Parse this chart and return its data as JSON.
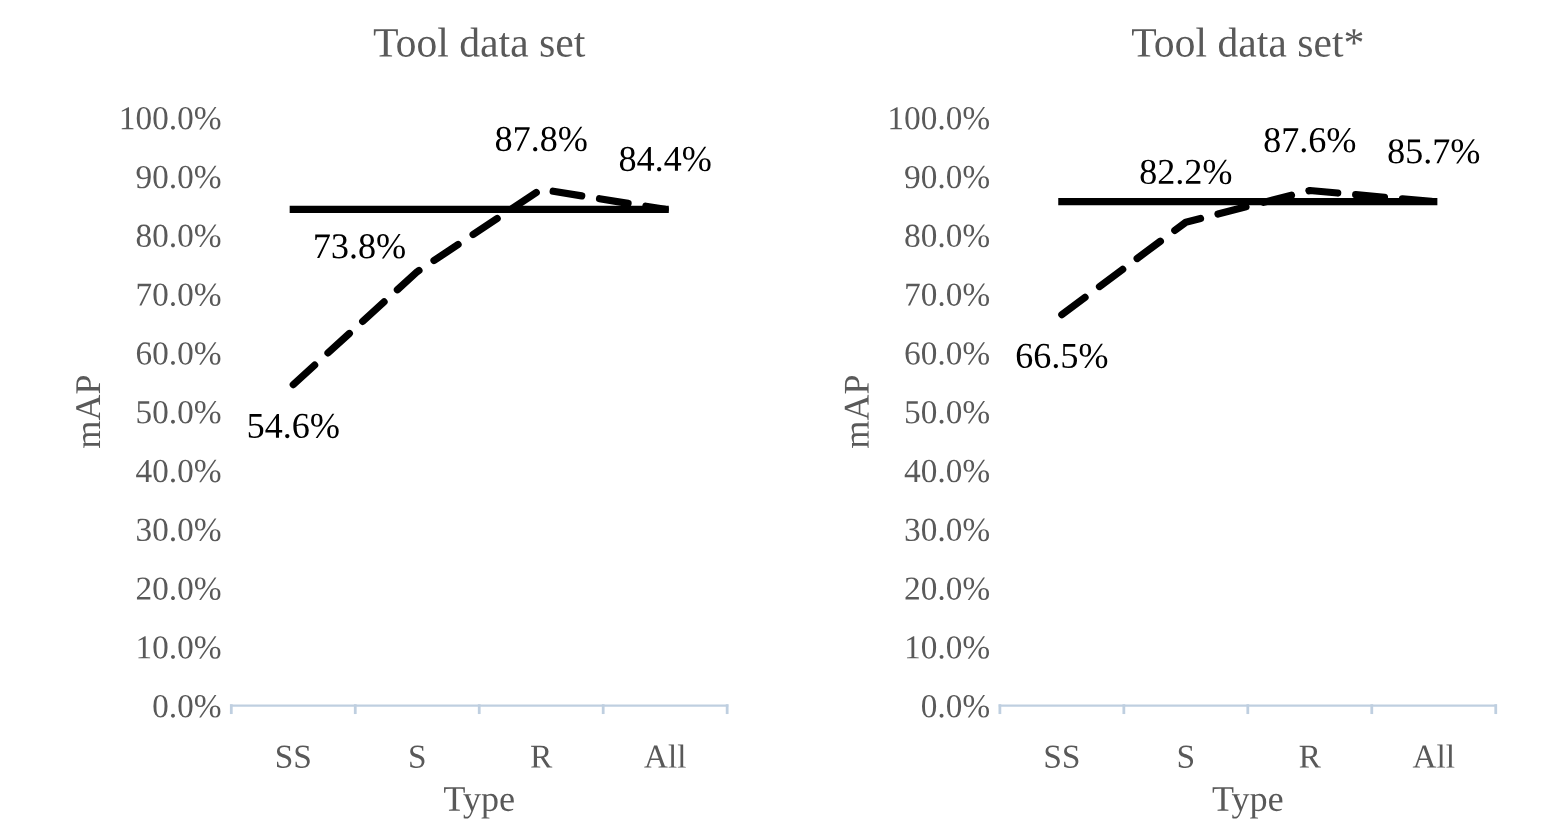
{
  "chart_data": [
    {
      "type": "line",
      "title": "Tool data set",
      "xlabel": "Type",
      "ylabel": "mAP",
      "categories": [
        "SS",
        "S",
        "R",
        "All"
      ],
      "series": [
        {
          "color": "#000000",
          "line_style": "dashed",
          "values": [
            54.6,
            73.8,
            87.8,
            84.4
          ],
          "value_labels": [
            "54.6%",
            "73.8%",
            "87.8%",
            "84.4%"
          ]
        },
        {
          "color": "#000000",
          "line_style": "solid",
          "values": [
            84.4,
            84.4,
            84.4,
            84.4
          ]
        }
      ],
      "ylim": [
        0,
        100
      ],
      "yticks": [
        {
          "value": 0,
          "label": "0.0%"
        },
        {
          "value": 10,
          "label": "10.0%"
        },
        {
          "value": 20,
          "label": "20.0%"
        },
        {
          "value": 30,
          "label": "30.0%"
        },
        {
          "value": 40,
          "label": "40.0%"
        },
        {
          "value": 50,
          "label": "50.0%"
        },
        {
          "value": 60,
          "label": "60.0%"
        },
        {
          "value": 70,
          "label": "70.0%"
        },
        {
          "value": 80,
          "label": "80.0%"
        },
        {
          "value": 90,
          "label": "90.0%"
        },
        {
          "value": 100,
          "label": "100.0%"
        }
      ],
      "grid": false,
      "legend": false,
      "marker": "none"
    },
    {
      "type": "line",
      "title": "Tool data set*",
      "xlabel": "Type",
      "ylabel": "mAP",
      "categories": [
        "SS",
        "S",
        "R",
        "All"
      ],
      "series": [
        {
          "color": "#000000",
          "line_style": "dashed",
          "values": [
            66.5,
            82.2,
            87.6,
            85.7
          ],
          "value_labels": [
            "66.5%",
            "82.2%",
            "87.6%",
            "85.7%"
          ]
        },
        {
          "color": "#000000",
          "line_style": "solid",
          "values": [
            85.7,
            85.7,
            85.7,
            85.7
          ]
        }
      ],
      "ylim": [
        0,
        100
      ],
      "yticks": [
        {
          "value": 0,
          "label": "0.0%"
        },
        {
          "value": 10,
          "label": "10.0%"
        },
        {
          "value": 20,
          "label": "20.0%"
        },
        {
          "value": 30,
          "label": "30.0%"
        },
        {
          "value": 40,
          "label": "40.0%"
        },
        {
          "value": 50,
          "label": "50.0%"
        },
        {
          "value": 60,
          "label": "60.0%"
        },
        {
          "value": 70,
          "label": "70.0%"
        },
        {
          "value": 80,
          "label": "80.0%"
        },
        {
          "value": 90,
          "label": "90.0%"
        },
        {
          "value": 100,
          "label": "100.0%"
        }
      ],
      "grid": false,
      "legend": false,
      "marker": "none"
    }
  ]
}
